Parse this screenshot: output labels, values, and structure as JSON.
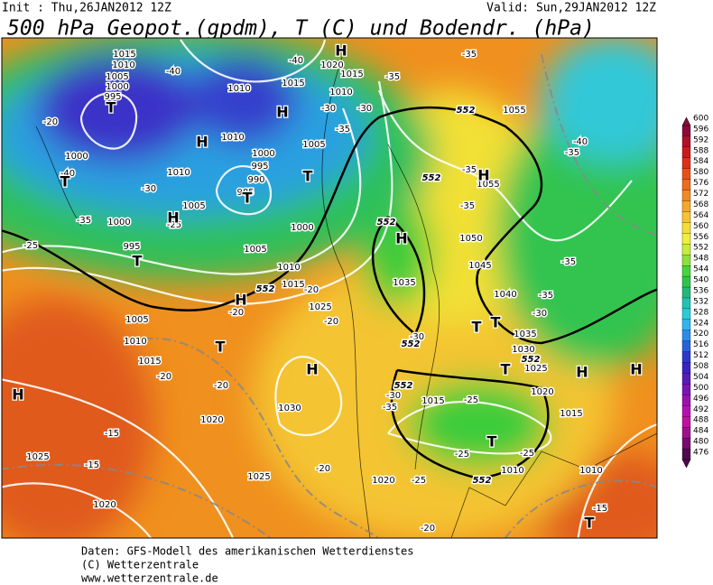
{
  "header": {
    "init": "Init : Thu,26JAN2012 12Z",
    "valid": "Valid: Sun,29JAN2012 12Z",
    "title": "500 hPa Geopot.(gpdm), T (C) und Bodendr. (hPa)"
  },
  "legend": {
    "levels": [
      600,
      596,
      592,
      588,
      584,
      580,
      576,
      572,
      568,
      564,
      560,
      556,
      552,
      548,
      544,
      540,
      536,
      532,
      528,
      524,
      520,
      516,
      512,
      508,
      504,
      500,
      496,
      492,
      488,
      484,
      480,
      476
    ],
    "colors": [
      "#8b0a3c",
      "#b0102a",
      "#cc1a1a",
      "#e0301a",
      "#e8501a",
      "#ee6a1c",
      "#f08a22",
      "#f4a82a",
      "#f6c232",
      "#f6dc36",
      "#eef038",
      "#c8ec38",
      "#8ee03a",
      "#46d43a",
      "#2ec44a",
      "#22b87a",
      "#22c2b4",
      "#28ccd8",
      "#30b4ec",
      "#2c8ce8",
      "#2860dc",
      "#2c38cc",
      "#3a22c0",
      "#5a1ab8",
      "#7a14b4",
      "#9a10b0",
      "#b810b0",
      "#c010a0",
      "#a0108c",
      "#760c70",
      "#50084e"
    ]
  },
  "map": {
    "pressure": [
      1015,
      1010,
      1005,
      1000,
      995,
      1010,
      1015,
      1020,
      1015,
      1010,
      1010,
      1000,
      995,
      990,
      985,
      1005,
      1000,
      1010,
      1005,
      1000,
      995,
      1000,
      1005,
      1010,
      1015,
      1025,
      1005,
      1010,
      1015,
      1020,
      1025,
      1020,
      1025,
      1030,
      1020,
      1055,
      1055,
      1050,
      1045,
      1040,
      1035,
      1035,
      1030,
      1025,
      1020,
      1015,
      1015,
      1010,
      1010
    ],
    "temperature": [
      -40,
      -40,
      -20,
      -40,
      -30,
      -35,
      -35,
      -30,
      -35,
      -30,
      -35,
      -25,
      -25,
      -35,
      -35,
      -35,
      -40,
      -35,
      -35,
      -30,
      -20,
      -20,
      -20,
      -20,
      -20,
      -15,
      -15,
      -30,
      -30,
      -35,
      -25,
      -25,
      -25,
      -20,
      -25,
      -20,
      -15
    ],
    "centers": [
      "T",
      "H",
      "H",
      "T",
      "T",
      "T",
      "H",
      "T",
      "H",
      "T",
      "H",
      "H",
      "H",
      "H",
      "T",
      "T",
      "T",
      "H",
      "H",
      "T",
      "T",
      "H"
    ],
    "geopotential": [
      552,
      552,
      552,
      552,
      552,
      552,
      552,
      552
    ]
  },
  "footer": {
    "lines": [
      "Daten: GFS-Modell des amerikanischen Wetterdienstes",
      "(C) Wetterzentrale",
      "www.wetterzentrale.de"
    ]
  }
}
